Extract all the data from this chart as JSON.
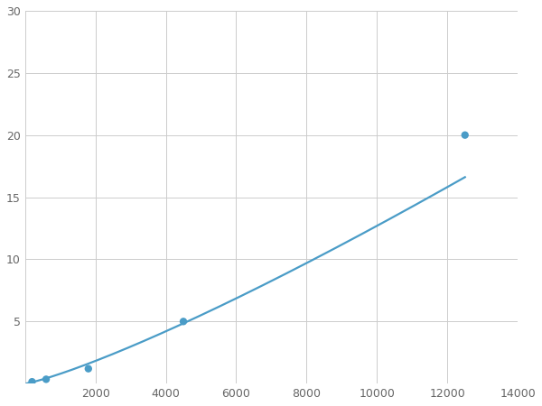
{
  "x_points": [
    200,
    600,
    1800,
    4500,
    12500
  ],
  "y_points": [
    0.15,
    0.35,
    1.2,
    5.0,
    20.0
  ],
  "line_color": "#4A9CC7",
  "marker_color": "#4A9CC7",
  "marker_size": 6,
  "line_width": 1.6,
  "xlim": [
    0,
    14000
  ],
  "ylim": [
    0,
    30
  ],
  "xticks": [
    0,
    2000,
    4000,
    6000,
    8000,
    10000,
    12000,
    14000
  ],
  "yticks": [
    0,
    5,
    10,
    15,
    20,
    25,
    30
  ],
  "grid_color": "#CCCCCC",
  "grid_linewidth": 0.7,
  "background_color": "#FFFFFF",
  "figure_width": 6.0,
  "figure_height": 4.5,
  "dpi": 100,
  "tick_fontsize": 9,
  "tick_color": "#666666"
}
